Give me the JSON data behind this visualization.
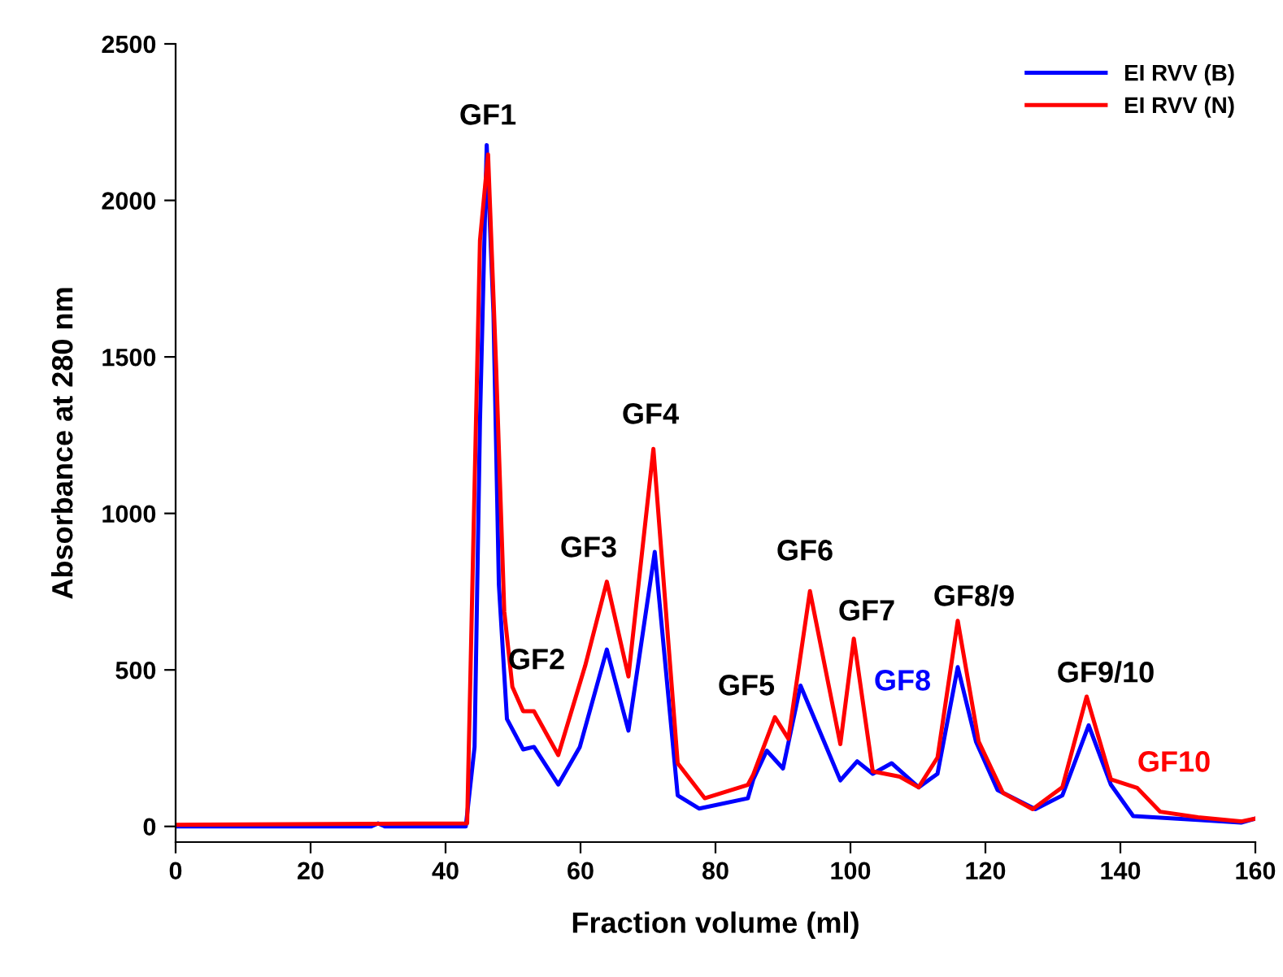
{
  "chart_data": {
    "type": "line",
    "xlabel": "Fraction volume (ml)",
    "ylabel": "Absorbance at 280 nm",
    "xlim": [
      0,
      160
    ],
    "xticks": [
      0,
      20,
      40,
      60,
      80,
      100,
      120,
      140,
      160
    ],
    "ylim": [
      -50,
      2500
    ],
    "yticks": [
      0,
      500,
      1000,
      1500,
      2000,
      2500
    ],
    "grid": false,
    "legend": "top right",
    "marker": "none",
    "line_style": "solid",
    "series": [
      {
        "name": "EI RVV (B)",
        "color": "#0000ff",
        "x": [
          0,
          29,
          30,
          31,
          43.0,
          44.3,
          45.1,
          46.1,
          47.1,
          47.9,
          49.1,
          51.5,
          53.1,
          56.7,
          59.9,
          63.9,
          67.1,
          71.0,
          74.4,
          77.6,
          84.8,
          85.6,
          87.6,
          90.0,
          92.6,
          98.5,
          101.0,
          103.3,
          106.1,
          110.1,
          112.9,
          115.9,
          118.6,
          121.8,
          127.4,
          131.4,
          135.3,
          138.6,
          141.9,
          151.5,
          157.9,
          160
        ],
        "values": [
          0,
          0,
          10,
          0,
          0,
          254,
          1292,
          2177,
          1640,
          773,
          343,
          246,
          254,
          134,
          254,
          565,
          306,
          877,
          99,
          57,
          90,
          150,
          242,
          185,
          450,
          147,
          208,
          168,
          202,
          125,
          168,
          509,
          271,
          116,
          55,
          99,
          323,
          133,
          33,
          21,
          12,
          25
        ]
      },
      {
        "name": "EI RVV (N)",
        "color": "#ff0000",
        "x": [
          0,
          43.2,
          45.1,
          46.3,
          47.5,
          48.7,
          49.9,
          51.5,
          53.1,
          56.7,
          60.7,
          63.9,
          67.1,
          70.8,
          74.4,
          78.4,
          84.8,
          85.6,
          88.8,
          90.8,
          94.0,
          98.5,
          100.5,
          103.3,
          107.3,
          110.1,
          112.9,
          115.9,
          119.0,
          122.6,
          127.0,
          131.4,
          135.0,
          138.6,
          142.5,
          145.9,
          151.5,
          157.9,
          160
        ],
        "values": [
          5,
          10,
          1872,
          2147,
          1465,
          687,
          446,
          368,
          368,
          228,
          514,
          782,
          479,
          1206,
          202,
          90,
          133,
          166,
          349,
          280,
          752,
          263,
          600,
          176,
          159,
          125,
          220,
          657,
          271,
          107,
          55,
          125,
          415,
          150,
          123,
          47,
          29,
          16,
          25
        ]
      }
    ],
    "annotations": [
      "GF1",
      "GF2",
      "GF3",
      "GF4",
      "GF5",
      "GF6",
      "GF7",
      "GF8",
      "GF8/9",
      "GF9/10",
      "GF10"
    ]
  }
}
